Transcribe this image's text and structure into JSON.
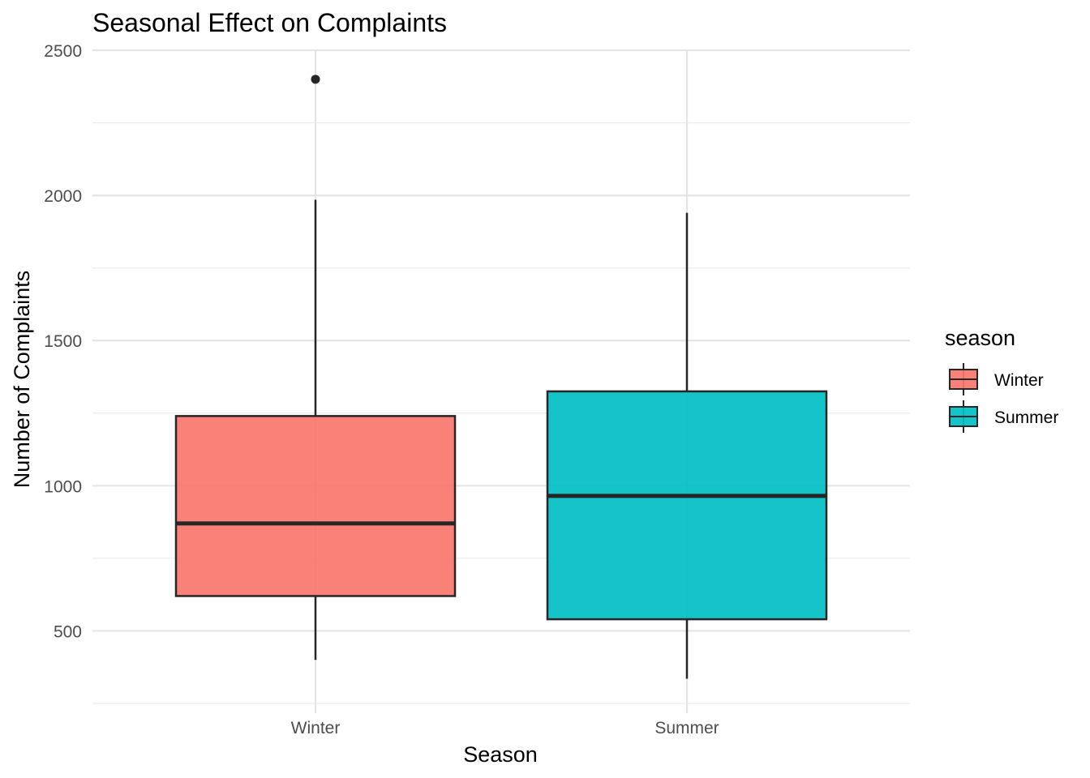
{
  "chart_data": {
    "type": "boxplot",
    "title": "Seasonal Effect on Complaints",
    "xlabel": "Season",
    "ylabel": "Number of Complaints",
    "ylim": [
      250,
      2500
    ],
    "yticks": [
      500,
      1000,
      1500,
      2000,
      2500
    ],
    "ytick_labels": [
      "500",
      "1000",
      "1500",
      "2000",
      "2500"
    ],
    "grid": true,
    "legend": {
      "title": "season",
      "position": "right"
    },
    "categories": [
      "Winter",
      "Summer"
    ],
    "boxes": [
      {
        "name": "Winter",
        "color": "#F8766D",
        "whisker_low": 400,
        "q1": 620,
        "median": 870,
        "q3": 1240,
        "whisker_high": 1985,
        "outliers": [
          2400
        ]
      },
      {
        "name": "Summer",
        "color": "#00BFC4",
        "whisker_low": 335,
        "q1": 540,
        "median": 965,
        "q3": 1325,
        "whisker_high": 1940,
        "outliers": []
      }
    ]
  }
}
